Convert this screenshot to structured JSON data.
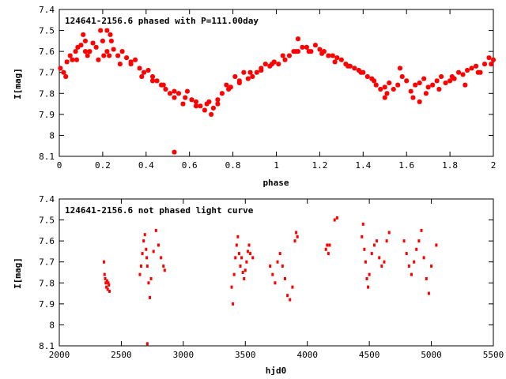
{
  "marker_color": "#ff0000",
  "chart_data": [
    {
      "type": "scatter",
      "title": "124641-2156.6 phased with P=111.00day",
      "xlabel": "phase",
      "ylabel": "I[mag]",
      "xlim": [
        0,
        2
      ],
      "ylim": [
        7.4,
        8.1
      ],
      "y_inverted": true,
      "grid": false,
      "x_ticks": [
        "0",
        "0.2",
        "0.4",
        "0.6",
        "0.8",
        "1",
        "1.2",
        "1.4",
        "1.6",
        "1.8",
        "2"
      ],
      "y_ticks": [
        "7.4",
        "7.5",
        "7.6",
        "7.7",
        "7.8",
        "7.9",
        "8",
        "8.1"
      ],
      "marker": "star",
      "x": [
        0.005,
        0.02,
        0.035,
        0.05,
        0.06,
        0.075,
        0.085,
        0.1,
        0.11,
        0.12,
        0.14,
        0.155,
        0.17,
        0.19,
        0.2,
        0.205,
        0.22,
        0.235,
        0.25,
        0.27,
        0.29,
        0.31,
        0.33,
        0.35,
        0.37,
        0.39,
        0.41,
        0.43,
        0.45,
        0.47,
        0.49,
        0.51,
        0.53,
        0.55,
        0.57,
        0.59,
        0.61,
        0.63,
        0.65,
        0.67,
        0.69,
        0.71,
        0.73,
        0.75,
        0.77,
        0.79,
        0.81,
        0.83,
        0.85,
        0.87,
        0.89,
        0.91,
        0.93,
        0.95,
        0.97,
        0.99,
        1.01,
        1.03,
        1.06,
        1.08,
        1.1,
        1.12,
        1.14,
        1.16,
        1.18,
        1.2,
        1.22,
        1.24,
        1.26,
        1.28,
        1.3,
        1.32,
        1.34,
        1.36,
        1.38,
        1.4,
        1.42,
        1.44,
        1.46,
        1.48,
        1.5,
        1.52,
        1.54,
        1.56,
        1.58,
        1.6,
        1.62,
        1.64,
        1.66,
        1.68,
        1.7,
        1.72,
        1.74,
        1.76,
        1.78,
        1.8,
        1.82,
        1.84,
        1.86,
        1.88,
        1.9,
        1.92,
        1.94,
        1.96,
        1.98,
        2.0,
        0.03,
        0.08,
        0.13,
        0.18,
        0.23,
        0.28,
        0.33,
        0.38,
        0.43,
        0.48,
        0.53,
        0.58,
        0.63,
        0.68,
        0.73,
        0.78,
        0.83,
        0.88,
        0.93,
        0.98,
        1.04,
        1.09,
        1.15,
        1.21,
        1.27,
        1.33,
        1.39,
        1.45,
        1.51,
        1.57,
        1.63,
        1.69,
        1.75,
        1.81,
        1.87,
        1.93,
        1.99,
        0.12,
        0.22,
        0.24,
        0.53,
        0.7,
        1.1,
        1.5,
        1.66
      ],
      "y": [
        7.68,
        7.7,
        7.65,
        7.62,
        7.64,
        7.6,
        7.58,
        7.57,
        7.52,
        7.55,
        7.6,
        7.56,
        7.58,
        7.5,
        7.55,
        7.62,
        7.6,
        7.52,
        7.59,
        7.62,
        7.6,
        7.63,
        7.65,
        7.64,
        7.68,
        7.7,
        7.69,
        7.72,
        7.74,
        7.76,
        7.78,
        7.8,
        7.82,
        7.8,
        7.85,
        7.79,
        7.83,
        7.84,
        7.86,
        7.88,
        7.84,
        7.87,
        7.85,
        7.8,
        7.76,
        7.77,
        7.72,
        7.75,
        7.7,
        7.73,
        7.72,
        7.7,
        7.68,
        7.66,
        7.67,
        7.65,
        7.66,
        7.62,
        7.62,
        7.6,
        7.6,
        7.58,
        7.58,
        7.6,
        7.57,
        7.59,
        7.6,
        7.62,
        7.62,
        7.63,
        7.64,
        7.66,
        7.67,
        7.68,
        7.69,
        7.7,
        7.72,
        7.73,
        7.76,
        7.78,
        7.77,
        7.75,
        7.78,
        7.76,
        7.72,
        7.74,
        7.79,
        7.76,
        7.75,
        7.73,
        7.77,
        7.76,
        7.74,
        7.72,
        7.75,
        7.74,
        7.73,
        7.7,
        7.71,
        7.69,
        7.68,
        7.67,
        7.7,
        7.66,
        7.63,
        7.64,
        7.72,
        7.64,
        7.62,
        7.64,
        7.62,
        7.66,
        7.66,
        7.72,
        7.74,
        7.76,
        7.79,
        7.82,
        7.86,
        7.85,
        7.83,
        7.78,
        7.74,
        7.7,
        7.69,
        7.66,
        7.64,
        7.6,
        7.6,
        7.61,
        7.65,
        7.67,
        7.7,
        7.74,
        7.8,
        7.68,
        7.82,
        7.8,
        7.78,
        7.72,
        7.76,
        7.7,
        7.66,
        7.6,
        7.5,
        7.55,
        8.08,
        7.9,
        7.54,
        7.82,
        7.84
      ]
    },
    {
      "type": "scatter",
      "title": "124641-2156.6 not phased light curve",
      "xlabel": "hjd0",
      "ylabel": "I[mag]",
      "xlim": [
        2000,
        5500
      ],
      "ylim": [
        7.4,
        8.1
      ],
      "y_inverted": true,
      "grid": false,
      "x_ticks": [
        "2000",
        "2500",
        "3000",
        "3500",
        "4000",
        "4500",
        "5000",
        "5500"
      ],
      "y_ticks": [
        "7.4",
        "7.5",
        "7.6",
        "7.7",
        "7.8",
        "7.9",
        "8",
        "8.1"
      ],
      "marker": "dot",
      "x": [
        2360,
        2365,
        2370,
        2375,
        2380,
        2385,
        2390,
        2395,
        2400,
        2405,
        2650,
        2660,
        2670,
        2680,
        2690,
        2700,
        2705,
        2710,
        2720,
        2730,
        2740,
        2760,
        2780,
        2800,
        2820,
        2840,
        2850,
        2710,
        3390,
        3400,
        3410,
        3420,
        3430,
        3440,
        3450,
        3460,
        3470,
        3480,
        3490,
        3500,
        3510,
        3520,
        3530,
        3540,
        3560,
        3700,
        3720,
        3740,
        3760,
        3780,
        3800,
        3820,
        3840,
        3860,
        3880,
        3900,
        3910,
        3920,
        4150,
        4160,
        4170,
        4180,
        4220,
        4240,
        4440,
        4450,
        4460,
        4470,
        4480,
        4490,
        4500,
        4520,
        4540,
        4560,
        4580,
        4600,
        4620,
        4640,
        4660,
        4780,
        4800,
        4820,
        4840,
        4860,
        4880,
        4900,
        4920,
        4940,
        4960,
        4980,
        5000,
        5040
      ],
      "y": [
        7.7,
        7.76,
        7.78,
        7.8,
        7.82,
        7.79,
        7.83,
        7.8,
        7.81,
        7.84,
        7.76,
        7.72,
        7.66,
        7.6,
        7.57,
        7.64,
        7.68,
        7.72,
        7.8,
        7.87,
        7.78,
        7.65,
        7.55,
        7.62,
        7.68,
        7.72,
        7.74,
        8.09,
        7.82,
        7.9,
        7.76,
        7.68,
        7.62,
        7.58,
        7.66,
        7.72,
        7.68,
        7.75,
        7.78,
        7.74,
        7.7,
        7.65,
        7.62,
        7.66,
        7.68,
        7.72,
        7.76,
        7.8,
        7.7,
        7.66,
        7.72,
        7.78,
        7.86,
        7.88,
        7.82,
        7.6,
        7.56,
        7.58,
        7.64,
        7.62,
        7.66,
        7.62,
        7.5,
        7.49,
        7.58,
        7.52,
        7.64,
        7.7,
        7.78,
        7.82,
        7.76,
        7.66,
        7.62,
        7.6,
        7.68,
        7.72,
        7.7,
        7.6,
        7.56,
        7.6,
        7.66,
        7.72,
        7.76,
        7.7,
        7.64,
        7.6,
        7.55,
        7.68,
        7.78,
        7.85,
        7.72,
        7.62
      ]
    }
  ]
}
